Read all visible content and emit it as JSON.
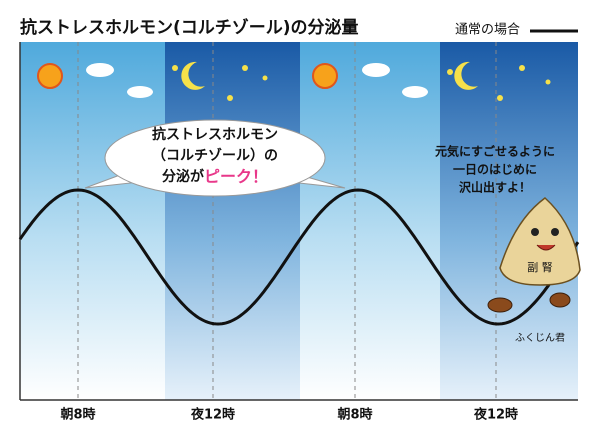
{
  "header": {
    "title": "抗ストレスホルモン(コルチゾール)の分泌量",
    "legend": "通常の場合"
  },
  "x_labels": [
    "朝8時",
    "夜12時",
    "朝8時",
    "夜12時"
  ],
  "bubble": {
    "lines": [
      "抗ストレスホルモン",
      "（コルチゾール）の",
      "分泌が"
    ],
    "highlight": "ピーク！"
  },
  "mascot": {
    "speech": [
      "元気にすごせるように",
      "一日のはじめに",
      "沢山出すよ！"
    ],
    "badge": "副 腎",
    "name": "ふくじん君"
  }
}
